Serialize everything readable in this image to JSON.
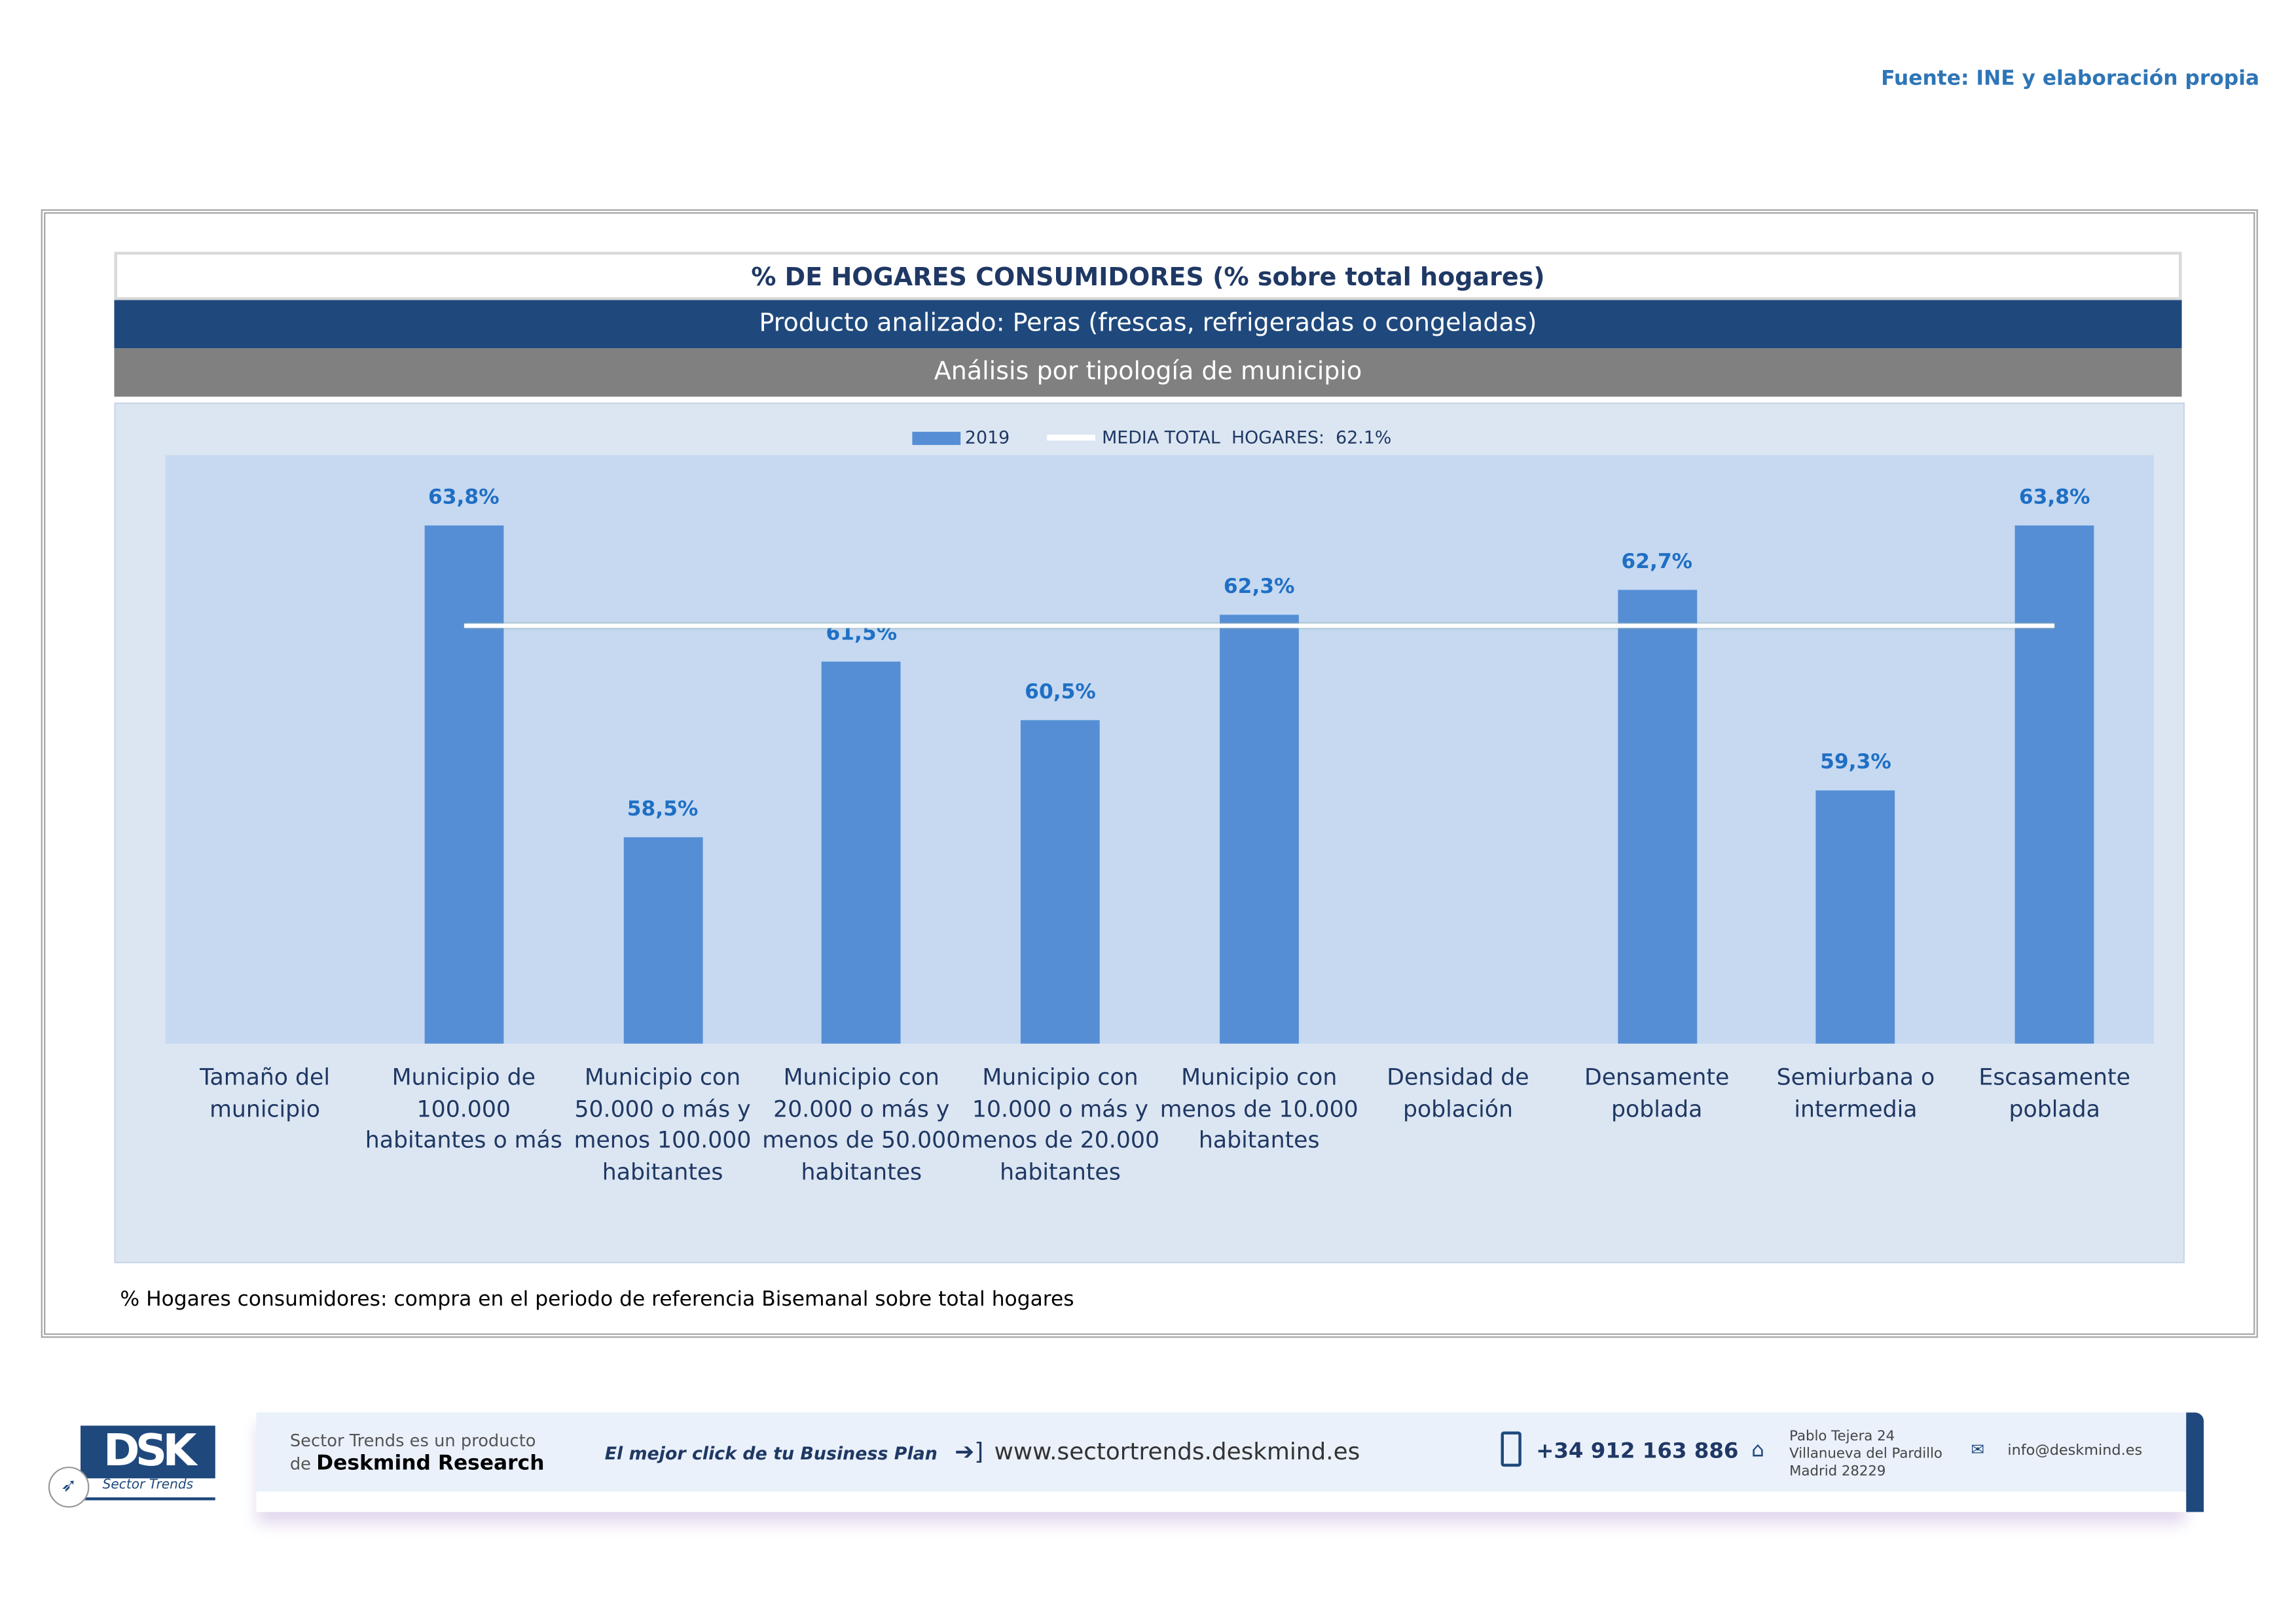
{
  "source": "Fuente: INE y elaboración propia",
  "header": {
    "title": "% DE HOGARES CONSUMIDORES (% sobre total hogares)",
    "product": "Producto analizado: Peras (frescas, refrigeradas o congeladas)",
    "analysis": "Análisis por tipología de municipio"
  },
  "chart_data": {
    "type": "bar",
    "categories": [
      "Tamaño del municipio",
      "Municipio de 100.000 habitantes o más",
      "Municipio con 50.000 o más y menos 100.000 habitantes",
      "Municipio con 20.000 o más y menos de 50.000 habitantes",
      "Municipio con 10.000 o más y menos de 20.000 habitantes",
      "Municipio con menos de 10.000 habitantes",
      "Densidad de población",
      "Densamente poblada",
      "Semiurbana o intermedia",
      "Escasamente poblada"
    ],
    "series": [
      {
        "name": "2019",
        "values": [
          null,
          63.8,
          58.5,
          61.5,
          60.5,
          62.3,
          null,
          62.7,
          59.3,
          63.8
        ],
        "labels": [
          "",
          "63,8%",
          "58,5%",
          "61,5%",
          "60,5%",
          "62,3%",
          "",
          "62,7%",
          "59,3%",
          "63,8%"
        ],
        "color": "#558ed5"
      }
    ],
    "reference_line": {
      "name": "MEDIA TOTAL  HOGARES:  62.1%",
      "value": 62.1,
      "color": "#ffffff"
    },
    "ylim": [
      55,
      65
    ],
    "legend": "top",
    "grid": false
  },
  "note": "% Hogares consumidores: compra en el periodo de referencia Bisemanal sobre total hogares",
  "footer": {
    "logo": "DSK",
    "logo_sub": "Sector Trends",
    "product_line1": "Sector Trends es un producto",
    "product_line2_prefix": "de",
    "product_line2_brand": "Deskmind Research",
    "slogan": "El mejor click de tu Business Plan",
    "website": "www.sectortrends.deskmind.es",
    "phone": "+34 912 163 886",
    "address1": "Pablo Tejera 24",
    "address2": "Villanueva del Pardillo",
    "address3": "Madrid 28229",
    "email": "info@deskmind.es"
  }
}
